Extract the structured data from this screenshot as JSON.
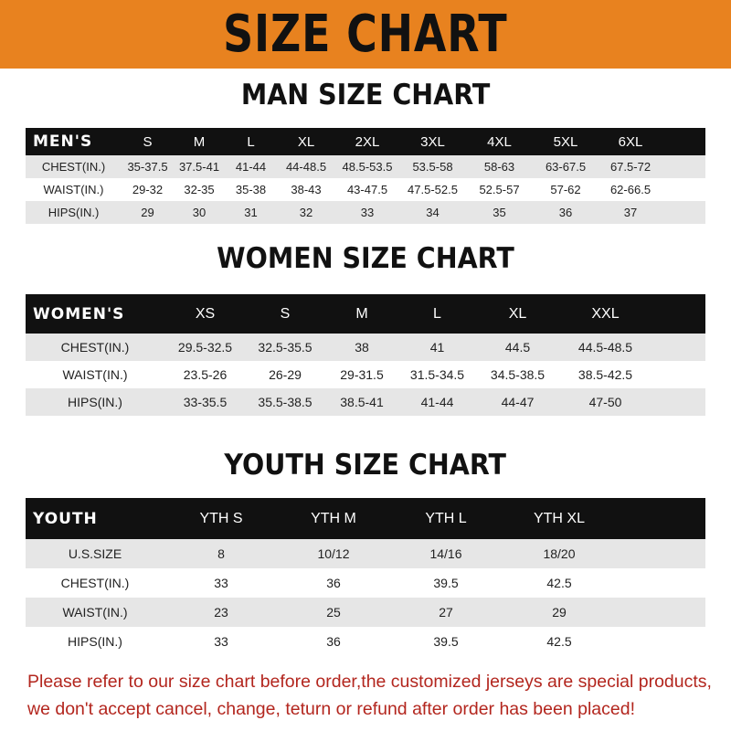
{
  "banner": {
    "title": "SIZE CHART",
    "color": "#e8821f"
  },
  "men": {
    "title": "MAN SIZE CHART",
    "header": [
      "MEN'S",
      "S",
      "M",
      "L",
      "XL",
      "2XL",
      "3XL",
      "4XL",
      "5XL",
      "6XL"
    ],
    "rows": [
      [
        "CHEST(IN.)",
        "35-37.5",
        "37.5-41",
        "41-44",
        "44-48.5",
        "48.5-53.5",
        "53.5-58",
        "58-63",
        "63-67.5",
        "67.5-72"
      ],
      [
        "WAIST(IN.)",
        "29-32",
        "32-35",
        "35-38",
        "38-43",
        "43-47.5",
        "47.5-52.5",
        "52.5-57",
        "57-62",
        "62-66.5"
      ],
      [
        "HIPS(IN.)",
        "29",
        "30",
        "31",
        "32",
        "33",
        "34",
        "35",
        "36",
        "37"
      ]
    ]
  },
  "women": {
    "title": "WOMEN SIZE CHART",
    "header": [
      "WOMEN'S",
      "XS",
      "S",
      "M",
      "L",
      "XL",
      "XXL"
    ],
    "rows": [
      [
        "CHEST(IN.)",
        "29.5-32.5",
        "32.5-35.5",
        "38",
        "41",
        "44.5",
        "44.5-48.5"
      ],
      [
        "WAIST(IN.)",
        "23.5-26",
        "26-29",
        "29-31.5",
        "31.5-34.5",
        "34.5-38.5",
        "38.5-42.5"
      ],
      [
        "HIPS(IN.)",
        "33-35.5",
        "35.5-38.5",
        "38.5-41",
        "41-44",
        "44-47",
        "47-50"
      ]
    ]
  },
  "youth": {
    "title": "YOUTH SIZE CHART",
    "header": [
      "YOUTH",
      "YTH S",
      "YTH M",
      "YTH L",
      "YTH XL"
    ],
    "rows": [
      [
        "U.S.SIZE",
        "8",
        "10/12",
        "14/16",
        "18/20"
      ],
      [
        "CHEST(IN.)",
        "33",
        "36",
        "39.5",
        "42.5"
      ],
      [
        "WAIST(IN.)",
        "23",
        "25",
        "27",
        "29"
      ],
      [
        "HIPS(IN.)",
        "33",
        "36",
        "39.5",
        "42.5"
      ]
    ]
  },
  "note": {
    "line1": "Please refer to our size chart before order,the customized jerseys are special products,",
    "line2": "we don't accept cancel, change, teturn or refund after order has been placed!",
    "color": "#b3261e"
  }
}
